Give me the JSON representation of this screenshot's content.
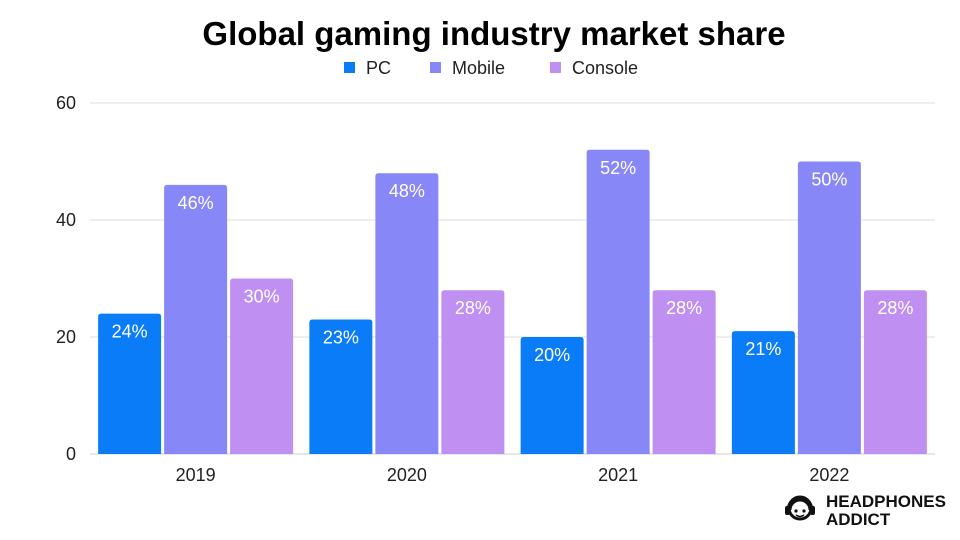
{
  "chart_data": {
    "type": "bar",
    "title": "Global gaming industry market share",
    "categories": [
      "2019",
      "2020",
      "2021",
      "2022"
    ],
    "series": [
      {
        "name": "PC",
        "color": "#0a7cf7",
        "values": [
          24,
          23,
          20,
          21
        ],
        "labels": [
          "24%",
          "23%",
          "20%",
          "21%"
        ]
      },
      {
        "name": "Mobile",
        "color": "#8787f7",
        "values": [
          46,
          48,
          52,
          50
        ],
        "labels": [
          "46%",
          "48%",
          "52%",
          "50%"
        ]
      },
      {
        "name": "Console",
        "color": "#bf8ff2",
        "values": [
          30,
          28,
          28,
          28
        ],
        "labels": [
          "30%",
          "28%",
          "28%",
          "28%"
        ]
      }
    ],
    "yticks": [
      0,
      20,
      40,
      60
    ],
    "ylim": [
      0,
      60
    ],
    "xlabel": "",
    "ylabel": "",
    "legend_position": "top-center",
    "grid": true
  },
  "brand": {
    "line1": "HEADPHONES",
    "line2": "ADDICT",
    "icon": "headphones-face-icon"
  }
}
